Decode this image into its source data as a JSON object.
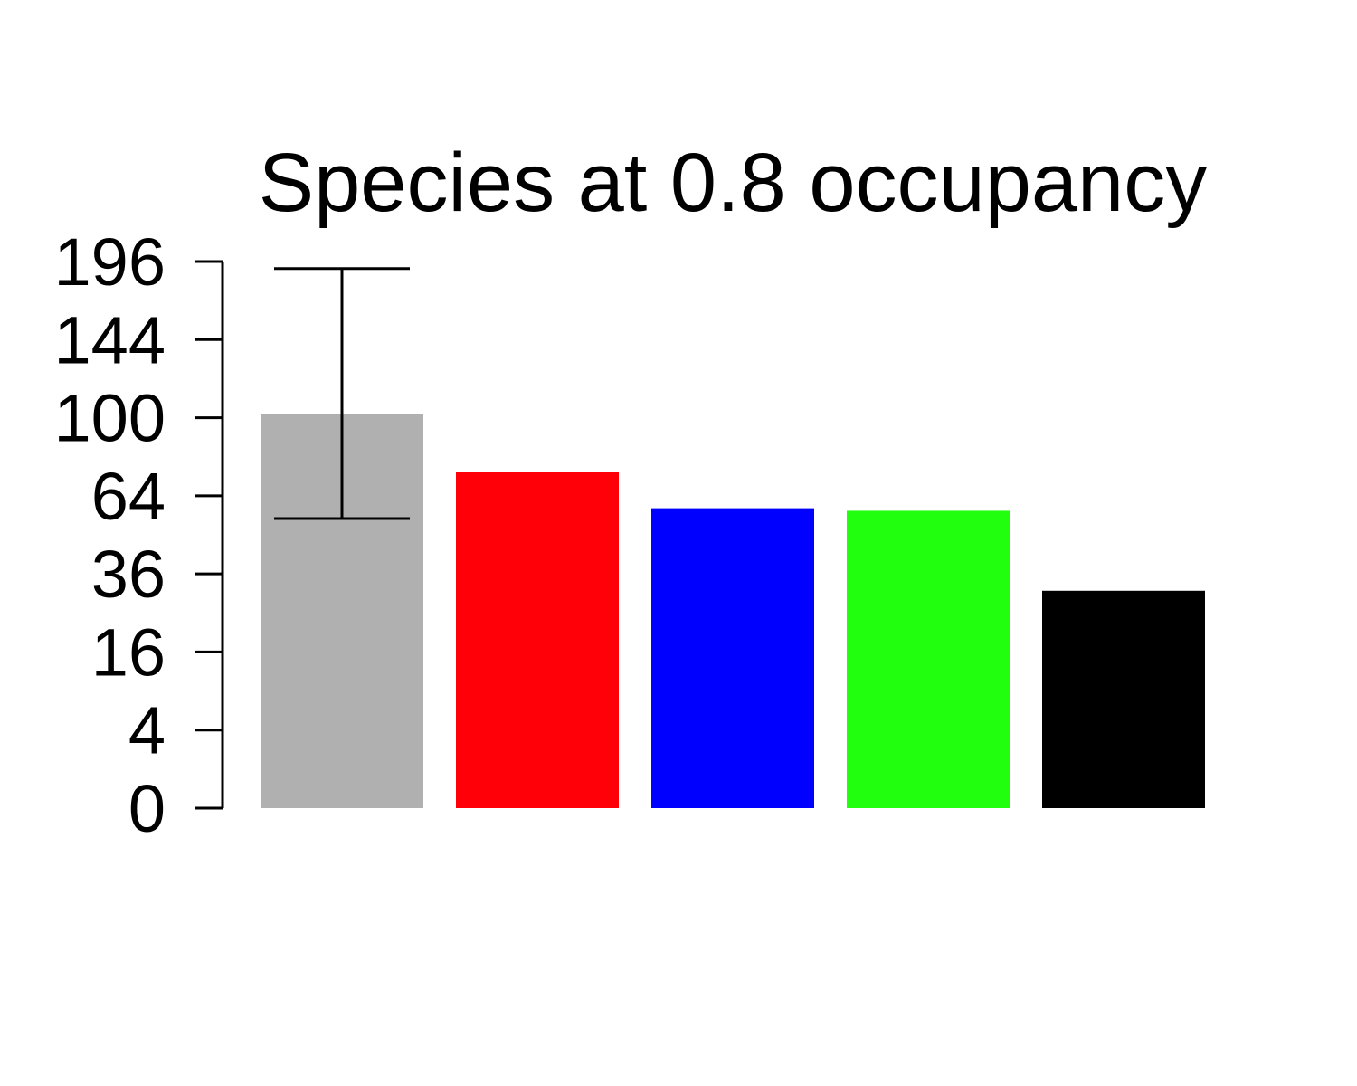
{
  "chart_data": {
    "type": "bar",
    "title": "Species at 0.8 occupancy",
    "xlabel": "",
    "ylabel": "",
    "y_scale": "sqrt",
    "ylim": [
      0,
      196
    ],
    "yticks": [
      0,
      4,
      16,
      36,
      64,
      100,
      144,
      196
    ],
    "grid": false,
    "categories": [
      "",
      "",
      "",
      "",
      ""
    ],
    "values": [
      102,
      74,
      59,
      58,
      31
    ],
    "colors": [
      "#b0b0b0",
      "#ff0009",
      "#0000ff",
      "#22ff0e",
      "#000000"
    ],
    "error_bar": {
      "bar_index": 0,
      "low": 55,
      "high": 191
    }
  }
}
